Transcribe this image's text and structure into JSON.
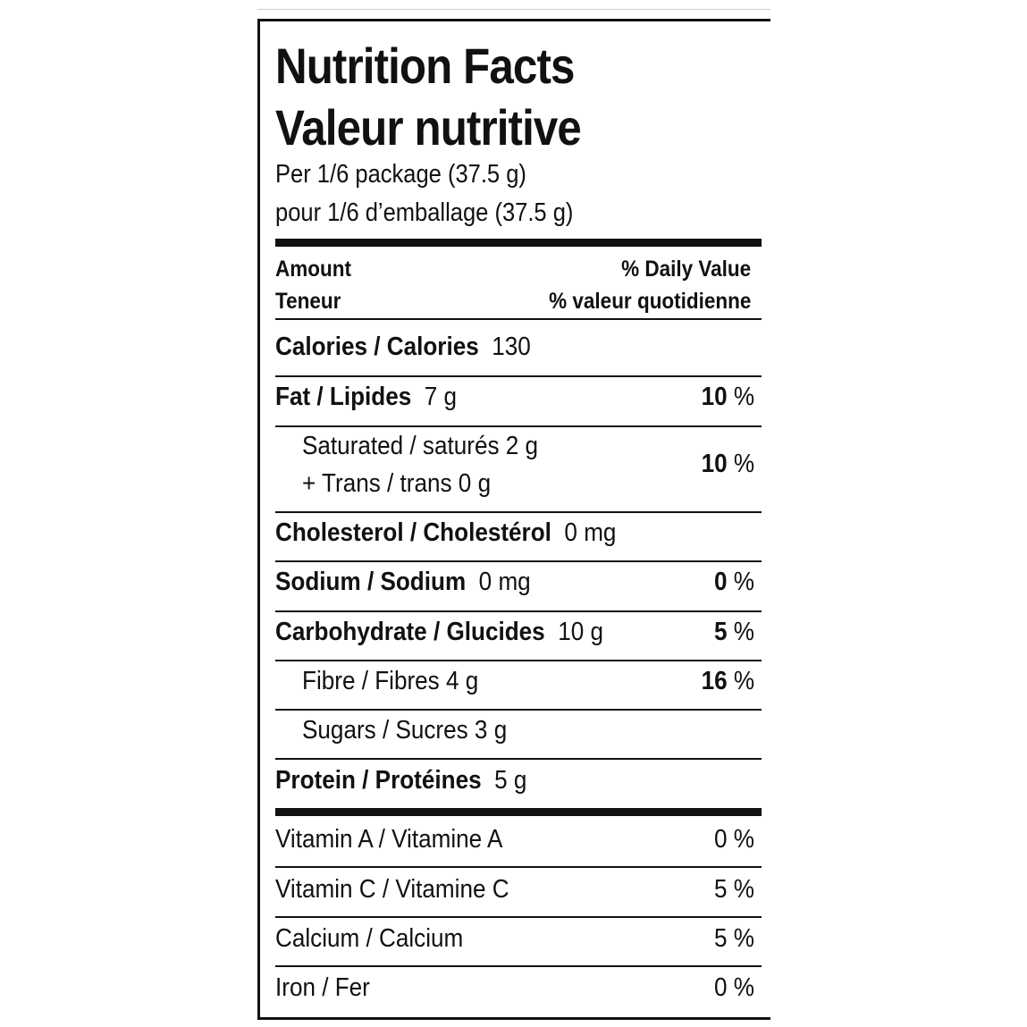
{
  "title_en": "Nutrition Facts",
  "title_fr": "Valeur nutritive",
  "serving_en": "Per 1/6 package (37.5 g)",
  "serving_fr": "pour 1/6 d’emballage (37.5 g)",
  "header": {
    "amount_en": "Amount",
    "amount_fr": "Teneur",
    "dv_en": "% Daily Value",
    "dv_fr": "% valeur quotidienne"
  },
  "nutrients": {
    "calories": {
      "label": "Calories / Calories",
      "amount": "130"
    },
    "fat": {
      "label": "Fat / Lipides",
      "amount": "7 g",
      "dv": "10",
      "unit": "%"
    },
    "saturated": {
      "label": "Saturated / saturés 2 g",
      "dv": "10",
      "unit": "%"
    },
    "trans": {
      "label": "+ Trans / trans 0 g"
    },
    "cholesterol": {
      "label": "Cholesterol / Cholestérol",
      "amount": "0 mg"
    },
    "sodium": {
      "label": "Sodium / Sodium",
      "amount": "0 mg",
      "dv": "0",
      "unit": "%"
    },
    "carbohydrate": {
      "label": "Carbohydrate / Glucides",
      "amount": "10 g",
      "dv": "5",
      "unit": "%"
    },
    "fibre": {
      "label": "Fibre / Fibres 4 g",
      "dv": "16",
      "unit": "%"
    },
    "sugars": {
      "label": "Sugars / Sucres 3 g"
    },
    "protein": {
      "label": "Protein / Protéines",
      "amount": "5 g"
    }
  },
  "vitamins": {
    "vitamin_a": {
      "label": "Vitamin A / Vitamine A",
      "dv": "0 %"
    },
    "vitamin_c": {
      "label": "Vitamin C / Vitamine C",
      "dv": "5 %"
    },
    "calcium": {
      "label": "Calcium / Calcium",
      "dv": "5 %"
    },
    "iron": {
      "label": "Iron / Fer",
      "dv": "0 %"
    }
  }
}
